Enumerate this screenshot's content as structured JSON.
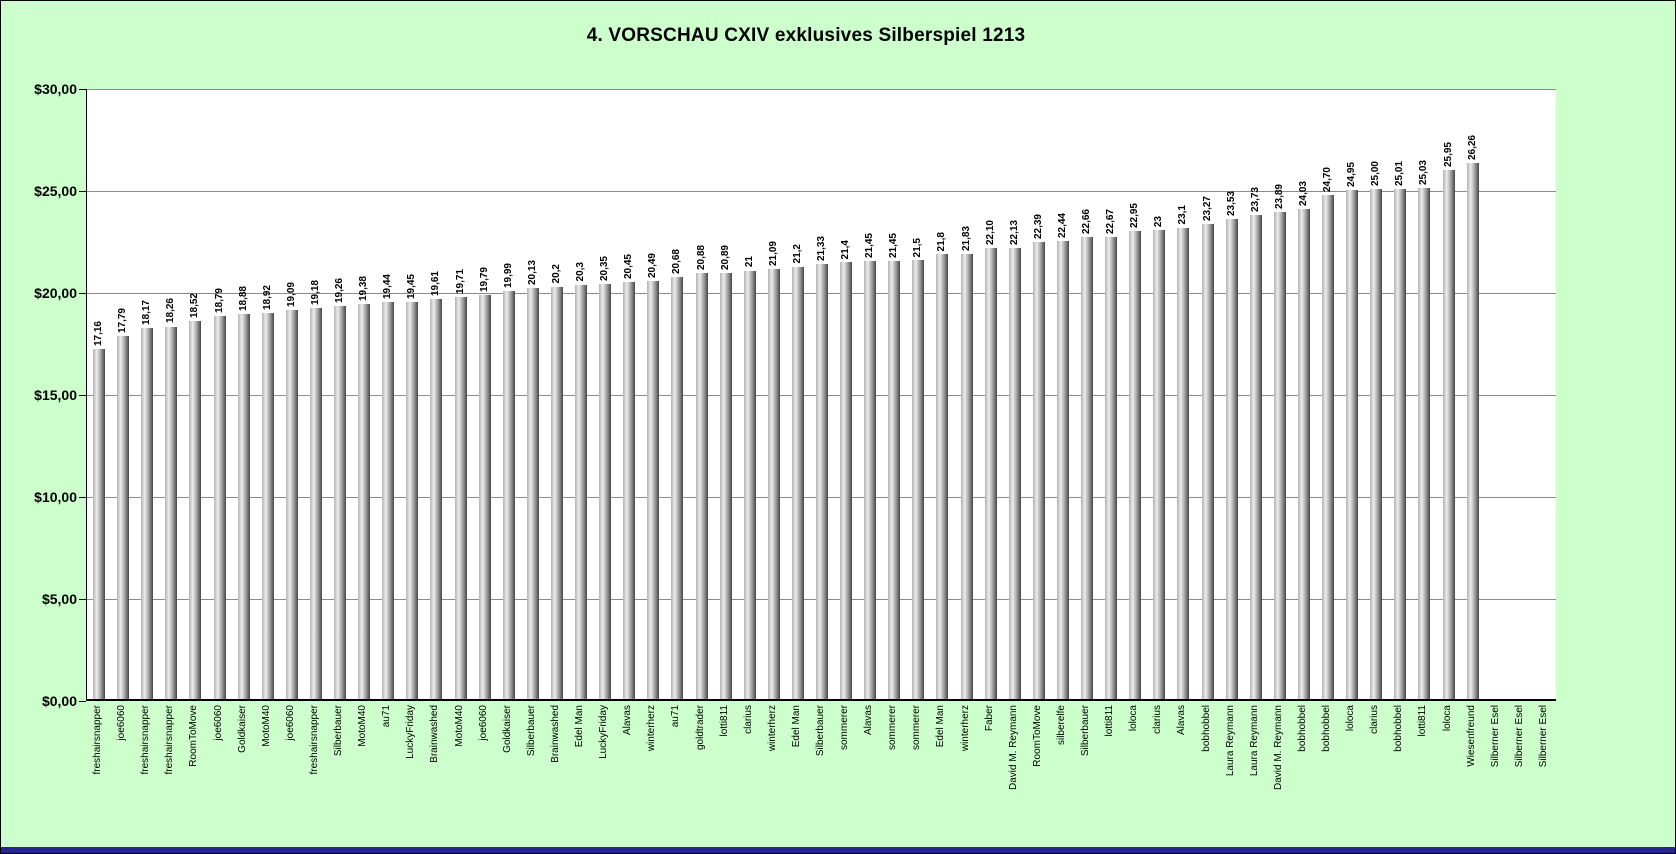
{
  "window": {
    "bg_color": "#ccffcc",
    "border_color": "#000000",
    "bottom_edge_color": "#26268f"
  },
  "chart_data": {
    "type": "bar",
    "title": "4. VORSCHAU CXIV exklusives Silberspiel 1213",
    "grid": true,
    "legend": false,
    "plot_bg_color": "#ffffff",
    "gridline_color": "#8a8a8a",
    "bar_color": "#9a9a9a",
    "y_axis": {
      "min": 0,
      "max": 30,
      "step": 5,
      "tick_labels": [
        "$0,00",
        "$5,00",
        "$10,00",
        "$15,00",
        "$20,00",
        "$25,00",
        "$30,00"
      ]
    },
    "categories": [
      "freshairsnapper",
      "joe6060",
      "freshairsnapper",
      "freshairsnapper",
      "RoomToMove",
      "joe6060",
      "Goldkaiser",
      "MotoM40",
      "joe6060",
      "freshairsnapper",
      "Silberbauer",
      "MotoM40",
      "au71",
      "LuckyFriday",
      "Brainwashed",
      "MotoM40",
      "joe6060",
      "Goldkaiser",
      "Silberbauer",
      "Brainwashed",
      "Edel Man",
      "LuckyFriday",
      "Alavas",
      "winterherz",
      "au71",
      "goldtrader",
      "lotti811",
      "clarius",
      "winterherz",
      "Edel Man",
      "Silberbauer",
      "sommerer",
      "Alavas",
      "sommerer",
      "sommerer",
      "Edel Man",
      "winterherz",
      "Faber",
      "David M. Reymann",
      "RoomToMove",
      "silberelfe",
      "Silberbauer",
      "lotti811",
      "loloca",
      "clarius",
      "Alavas",
      "bobhobbel",
      "Laura Reymann",
      "Laura Reymann",
      "David M. Reymann",
      "bobhobbel",
      "bobhobbel",
      "loloca",
      "clarius",
      "bobhobbel",
      "lotti811",
      "loloca",
      "Wiesenfreund",
      "Silberner Esel",
      "Silberner Esel",
      "Silberner Esel"
    ],
    "values": [
      17.16,
      17.79,
      18.17,
      18.26,
      18.52,
      18.79,
      18.88,
      18.92,
      19.09,
      19.18,
      19.26,
      19.38,
      19.44,
      19.45,
      19.61,
      19.71,
      19.79,
      19.99,
      20.13,
      20.2,
      20.3,
      20.35,
      20.45,
      20.49,
      20.68,
      20.88,
      20.89,
      21,
      21.09,
      21.2,
      21.33,
      21.4,
      21.45,
      21.45,
      21.5,
      21.8,
      21.83,
      22.1,
      22.13,
      22.39,
      22.44,
      22.66,
      22.67,
      22.95,
      23,
      23.1,
      23.27,
      23.53,
      23.73,
      23.89,
      24.03,
      24.7,
      24.95,
      25.0,
      25.01,
      25.03,
      25.95,
      26.26,
      null,
      null,
      null
    ],
    "value_labels": [
      "17,16",
      "17,79",
      "18,17",
      "18,26",
      "18,52",
      "18,79",
      "18,88",
      "18,92",
      "19,09",
      "19,18",
      "19,26",
      "19,38",
      "19,44",
      "19,45",
      "19,61",
      "19,71",
      "19,79",
      "19,99",
      "20,13",
      "20,2",
      "20,3",
      "20,35",
      "20,45",
      "20,49",
      "20,68",
      "20,88",
      "20,89",
      "21",
      "21,09",
      "21,2",
      "21,33",
      "21,4",
      "21,45",
      "21,45",
      "21,5",
      "21,8",
      "21,83",
      "22,10",
      "22,13",
      "22,39",
      "22,44",
      "22,66",
      "22,67",
      "22,95",
      "23",
      "23,1",
      "23,27",
      "23,53",
      "23,73",
      "23,89",
      "24,03",
      "24,70",
      "24,95",
      "25,00",
      "25,01",
      "25,03",
      "25,95",
      "26,26",
      "",
      "",
      ""
    ]
  }
}
